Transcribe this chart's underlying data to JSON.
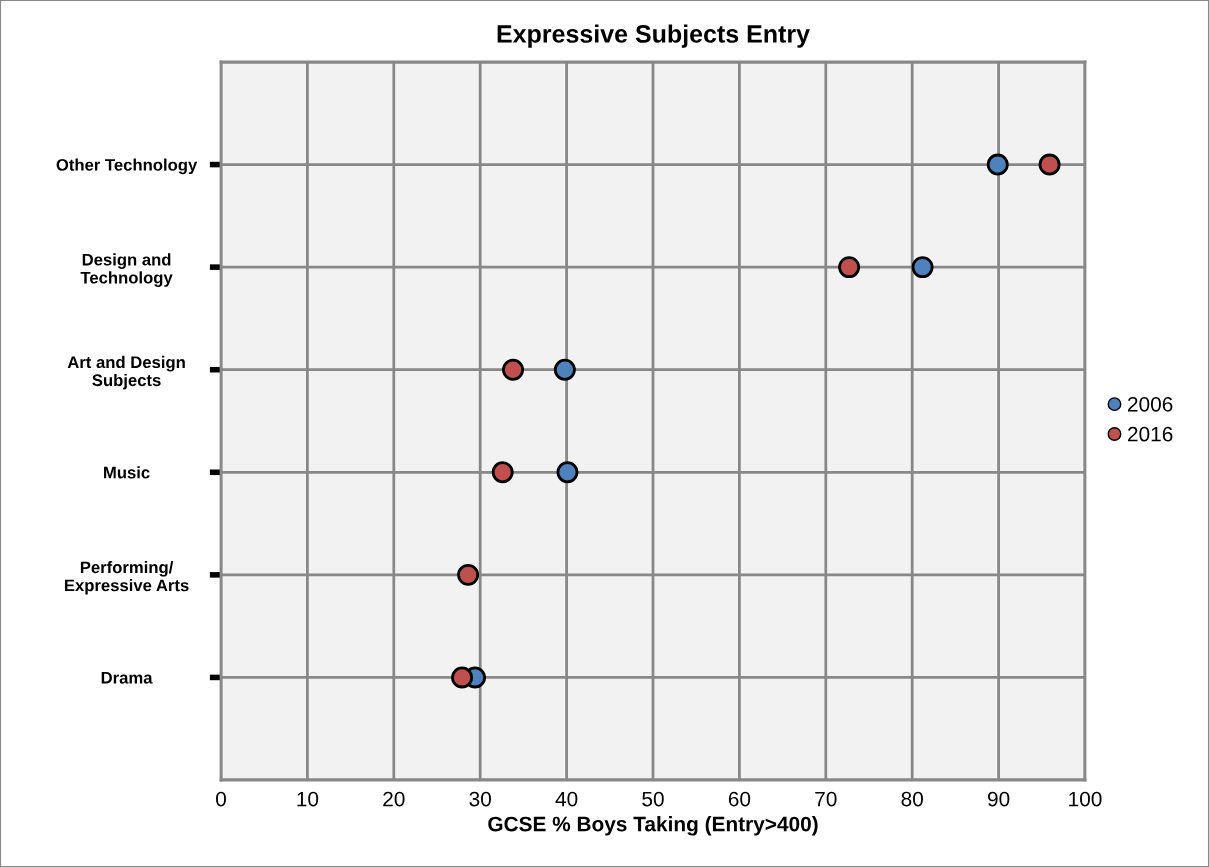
{
  "chart_data": {
    "type": "scatter",
    "orientation": "horizontal",
    "title": "Expressive Subjects Entry",
    "xlabel": "GCSE % Boys Taking (Entry>400)",
    "categories": [
      "Other Technology",
      "Design and\nTechnology",
      "Art and Design\nSubjects",
      "Music",
      "Performing/\nExpressive Arts",
      "Drama"
    ],
    "series": [
      {
        "name": "2006",
        "color": "#4f81bd",
        "values": [
          89.9,
          81.2,
          39.8,
          40.1,
          null,
          29.4
        ]
      },
      {
        "name": "2016",
        "color": "#c0504d",
        "values": [
          95.9,
          72.7,
          33.8,
          32.6,
          28.6,
          27.9
        ]
      }
    ],
    "xlim": [
      0,
      100
    ],
    "xticks": [
      0,
      10,
      20,
      30,
      40,
      50,
      60,
      70,
      80,
      90,
      100
    ],
    "grid": true,
    "legend": "right",
    "marker": "circle"
  }
}
